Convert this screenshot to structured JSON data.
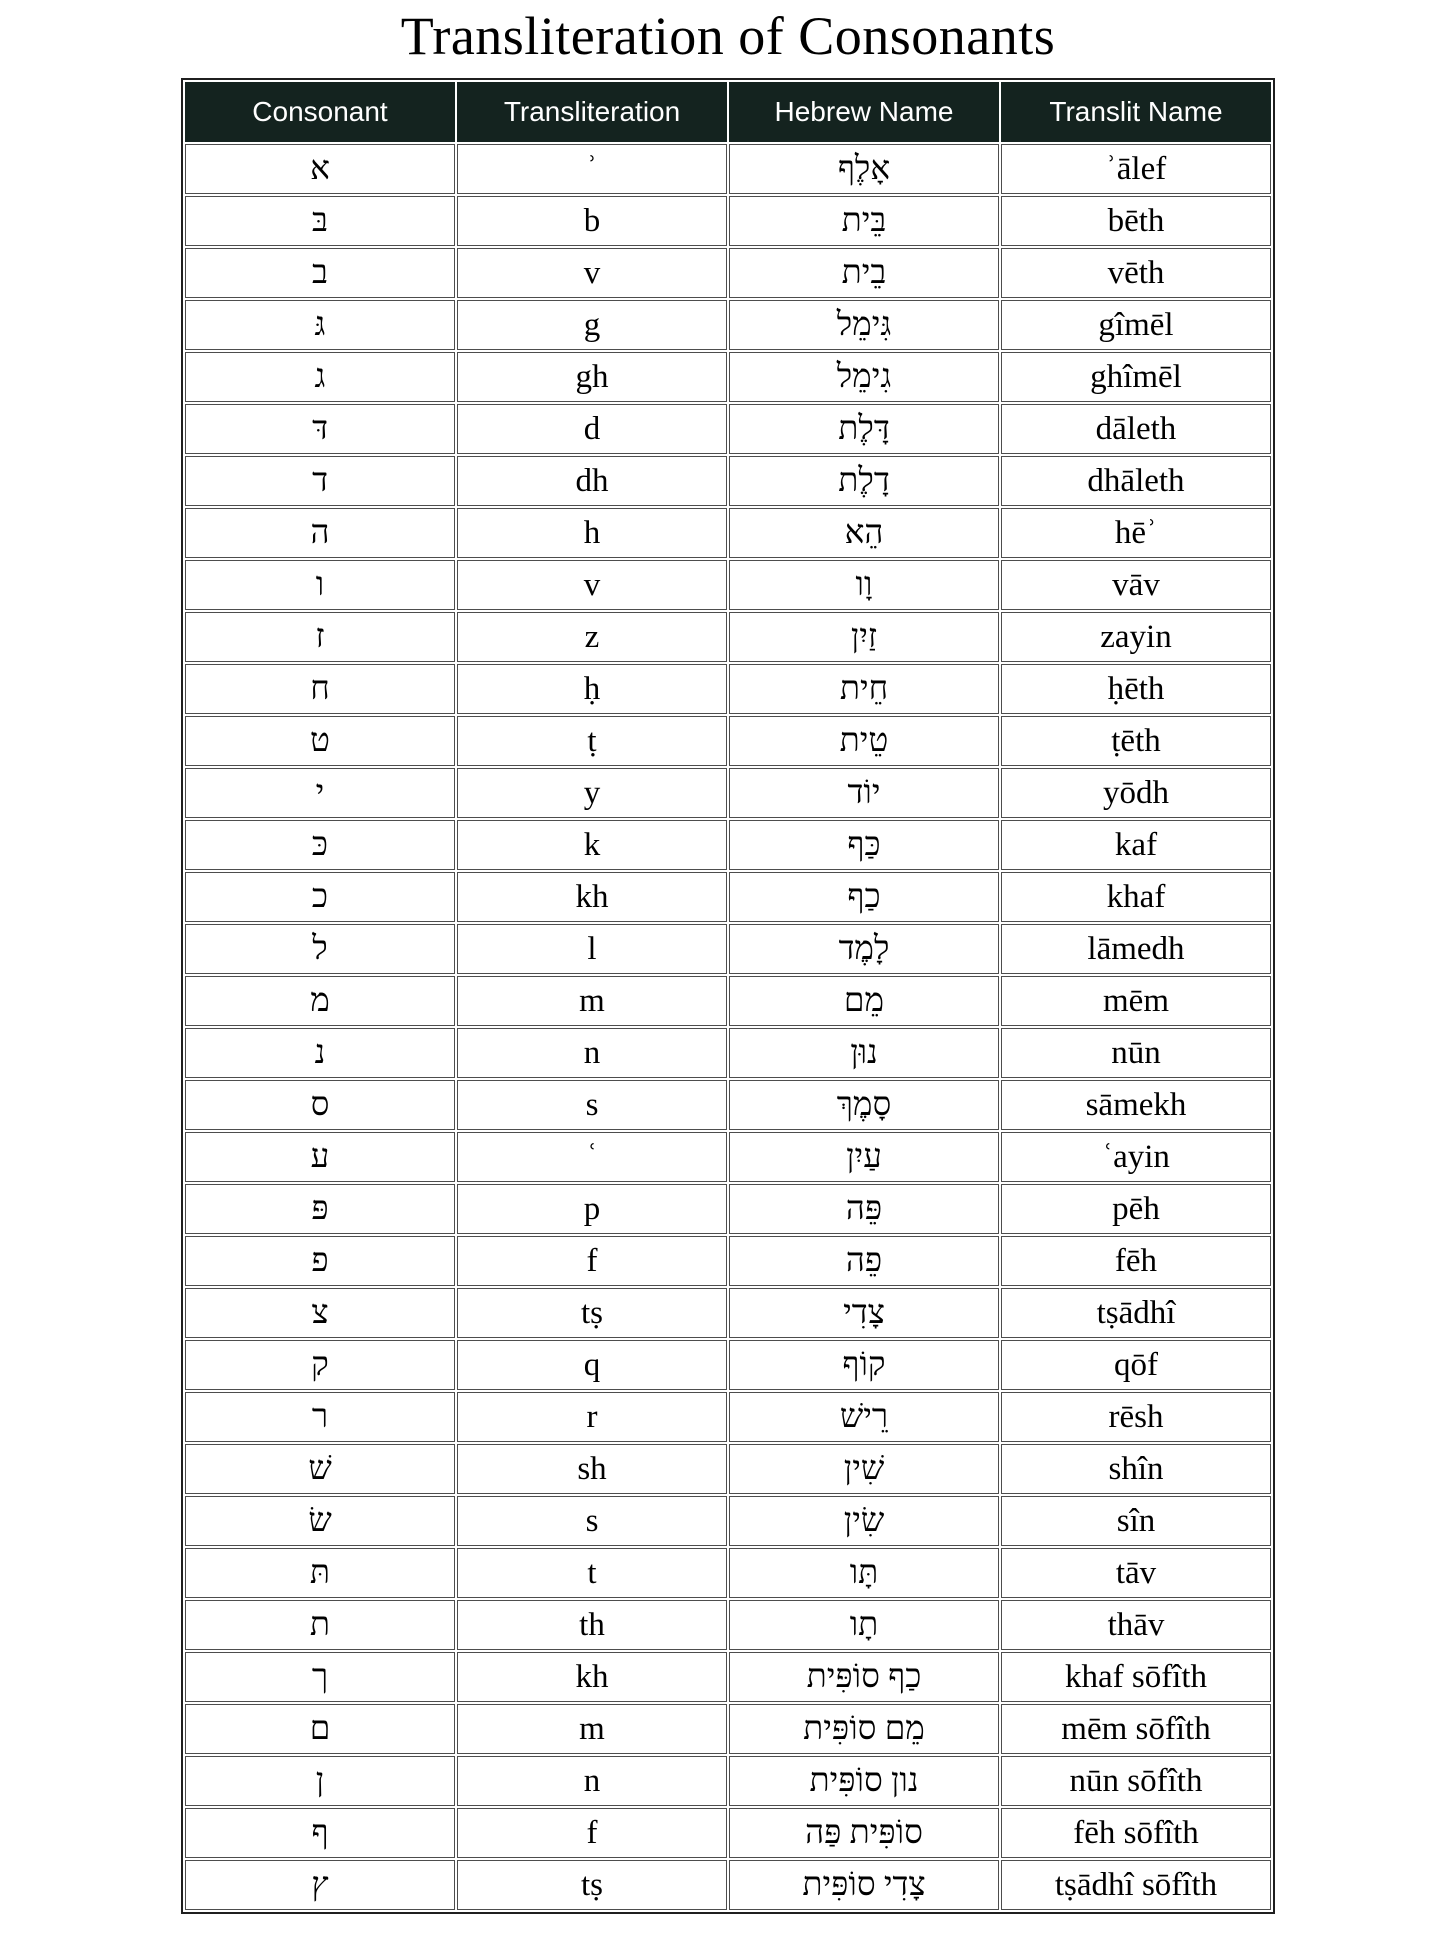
{
  "title": "Transliteration of Consonants",
  "colors": {
    "header_bg": "#14231f",
    "header_text": "#ffffff",
    "cell_border": "#4d4d4d",
    "outer_border": "#1f1f1f",
    "title_text": "#000000"
  },
  "table": {
    "headers": [
      "Consonant",
      "Transliteration",
      "Hebrew Name",
      "Translit Name"
    ],
    "rows": [
      {
        "consonant": "א",
        "transliteration": "ʾ",
        "hebrew_name": "אָלֶף",
        "translit_name": "ʾālef"
      },
      {
        "consonant": "בּ",
        "transliteration": "b",
        "hebrew_name": "בֵּית",
        "translit_name": "bēth"
      },
      {
        "consonant": "ב",
        "transliteration": "v",
        "hebrew_name": "בֵית",
        "translit_name": "vēth"
      },
      {
        "consonant": "גּ",
        "transliteration": "g",
        "hebrew_name": "גִּימֵל",
        "translit_name": "gîmēl"
      },
      {
        "consonant": "ג",
        "transliteration": "gh",
        "hebrew_name": "גִימֵל",
        "translit_name": "ghîmēl"
      },
      {
        "consonant": "דּ",
        "transliteration": "d",
        "hebrew_name": "דָּלֶת",
        "translit_name": "dāleth"
      },
      {
        "consonant": "ד",
        "transliteration": "dh",
        "hebrew_name": "דָלֶת",
        "translit_name": "dhāleth"
      },
      {
        "consonant": "ה",
        "transliteration": "h",
        "hebrew_name": "הֵא",
        "translit_name": "hēʾ"
      },
      {
        "consonant": "ו",
        "transliteration": "v",
        "hebrew_name": "וָו",
        "translit_name": "vāv"
      },
      {
        "consonant": "ז",
        "transliteration": "z",
        "hebrew_name": "זַיִן",
        "translit_name": "zayin"
      },
      {
        "consonant": "ח",
        "transliteration": "ḥ",
        "hebrew_name": "חֵית",
        "translit_name": "ḥēth"
      },
      {
        "consonant": "ט",
        "transliteration": "ṭ",
        "hebrew_name": "טֵית",
        "translit_name": "ṭēth"
      },
      {
        "consonant": "י",
        "transliteration": "y",
        "hebrew_name": "יוֹד",
        "translit_name": "yōdh"
      },
      {
        "consonant": "כּ",
        "transliteration": "k",
        "hebrew_name": "כַּף",
        "translit_name": "kaf"
      },
      {
        "consonant": "כ",
        "transliteration": "kh",
        "hebrew_name": "כַף",
        "translit_name": "khaf"
      },
      {
        "consonant": "ל",
        "transliteration": "l",
        "hebrew_name": "לָמֶד",
        "translit_name": "lāmedh"
      },
      {
        "consonant": "מ",
        "transliteration": "m",
        "hebrew_name": "מֵם",
        "translit_name": "mēm"
      },
      {
        "consonant": "נ",
        "transliteration": "n",
        "hebrew_name": "נוּן",
        "translit_name": "nūn"
      },
      {
        "consonant": "ס",
        "transliteration": "s",
        "hebrew_name": "סָמֶךְ",
        "translit_name": "sāmekh"
      },
      {
        "consonant": "ע",
        "transliteration": "ʿ",
        "hebrew_name": "עַיִן",
        "translit_name": "ʿayin"
      },
      {
        "consonant": "פּ",
        "transliteration": "p",
        "hebrew_name": "פֵּה",
        "translit_name": "pēh"
      },
      {
        "consonant": "פ",
        "transliteration": "f",
        "hebrew_name": "פֵה",
        "translit_name": "fēh"
      },
      {
        "consonant": "צ",
        "transliteration": "tṣ",
        "hebrew_name": "צָדִי",
        "translit_name": "tṣādhî"
      },
      {
        "consonant": "ק",
        "transliteration": "q",
        "hebrew_name": "קוֹף",
        "translit_name": "qōf"
      },
      {
        "consonant": "ר",
        "transliteration": "r",
        "hebrew_name": "רֵישׁ",
        "translit_name": "rēsh"
      },
      {
        "consonant": "שׁ",
        "transliteration": "sh",
        "hebrew_name": "שִׁין",
        "translit_name": "shîn"
      },
      {
        "consonant": "שׂ",
        "transliteration": "s",
        "hebrew_name": "שִׂין",
        "translit_name": "sîn"
      },
      {
        "consonant": "תּ",
        "transliteration": "t",
        "hebrew_name": "תָּו",
        "translit_name": "tāv"
      },
      {
        "consonant": "ת",
        "transliteration": "th",
        "hebrew_name": "תָו",
        "translit_name": "thāv"
      },
      {
        "consonant": "ך",
        "transliteration": "kh",
        "hebrew_name": "כַף סוֹפִּית",
        "translit_name": "khaf sōfîth"
      },
      {
        "consonant": "ם",
        "transliteration": "m",
        "hebrew_name": "מֵם סוֹפִּית",
        "translit_name": "mēm sōfîth"
      },
      {
        "consonant": "ן",
        "transliteration": "n",
        "hebrew_name": "נון סוֹפִּית",
        "translit_name": "nūn sōfîth"
      },
      {
        "consonant": "ף",
        "transliteration": "f",
        "hebrew_name": "סוֹפִּית פַּה",
        "translit_name": "fēh sōfîth"
      },
      {
        "consonant": "ץ",
        "transliteration": "tṣ",
        "hebrew_name": "צָדִי סוֹפִּית",
        "translit_name": "tṣādhî sōfîth"
      }
    ]
  }
}
